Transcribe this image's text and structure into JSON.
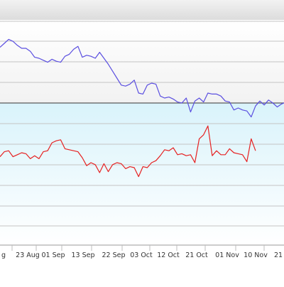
{
  "chart_data": {
    "type": "line",
    "title": "",
    "xlabel": "",
    "ylabel": "",
    "grid": true,
    "x_tick_labels": [
      "g",
      "23 Aug",
      "01 Sep",
      "13 Sep",
      "22 Sep",
      "03 Oct",
      "12 Oct",
      "21 Oct",
      "01 Nov",
      "10 Nov",
      "21"
    ],
    "series": [
      {
        "color": "#5b4fe0",
        "values": [
          56,
          60,
          64,
          62,
          58,
          55,
          55,
          52,
          46,
          45,
          43,
          41,
          44,
          42,
          41,
          47,
          49,
          54,
          57,
          46,
          48,
          47,
          45,
          51,
          45,
          39,
          32,
          25,
          18,
          17,
          19,
          23,
          10,
          9,
          18,
          20,
          19,
          7,
          5,
          6,
          4,
          1,
          0,
          5,
          -9,
          2,
          5,
          1,
          10,
          9,
          9,
          7,
          2,
          1,
          -7,
          -5,
          -7,
          -8,
          -14,
          -3,
          2,
          -2,
          3,
          0,
          -4,
          -1,
          1
        ]
      },
      {
        "color": "#e62121",
        "values": [
          -54,
          -49,
          -48,
          -54,
          -52,
          -50,
          -51,
          -56,
          -53,
          -56,
          -49,
          -48,
          -40,
          -38,
          -37,
          -46,
          -47,
          -48,
          -49,
          -55,
          -63,
          -60,
          -62,
          -70,
          -61,
          -69,
          -62,
          -60,
          -61,
          -66,
          -64,
          -65,
          -74,
          -64,
          -65,
          -60,
          -58,
          -53,
          -47,
          -48,
          -45,
          -52,
          -51,
          -53,
          -52,
          -60,
          -36,
          -32,
          -23,
          -53,
          -48,
          -52,
          -52,
          -46,
          -50,
          -51,
          -52,
          -59,
          -36,
          -48
        ]
      }
    ]
  }
}
